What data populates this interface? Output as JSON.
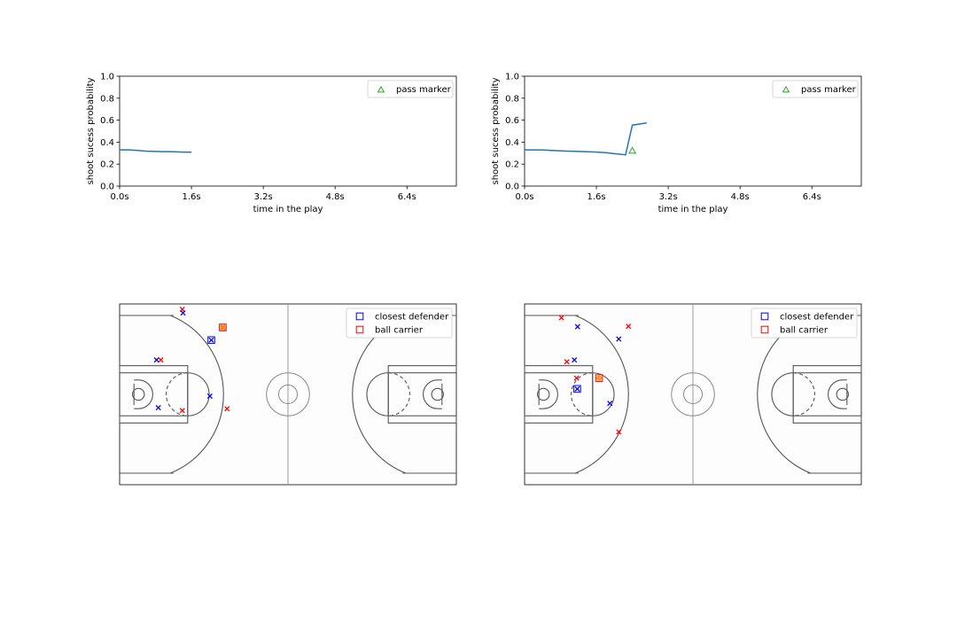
{
  "chart_data": [
    {
      "type": "line",
      "panel": "top-left",
      "ylabel": "shoot sucess probability",
      "xlabel": "time in the play",
      "xlim": [
        0,
        7.5
      ],
      "ylim": [
        0,
        1.0
      ],
      "yticks": [
        "0.0",
        "0.2",
        "0.4",
        "0.6",
        "0.8",
        "1.0"
      ],
      "xticks": [
        "0.0s",
        "1.6s",
        "3.2s",
        "4.8s",
        "6.4s"
      ],
      "xtick_values": [
        0,
        1.6,
        3.2,
        4.8,
        6.4
      ],
      "grid": false,
      "legend": {
        "position": "top-right",
        "entries": [
          "pass marker"
        ]
      },
      "series": [
        {
          "name": "",
          "color": "#1f77b4",
          "x": [
            0,
            0.2,
            0.4,
            0.6,
            0.8,
            1.0,
            1.2,
            1.4,
            1.6
          ],
          "y": [
            0.33,
            0.33,
            0.325,
            0.318,
            0.315,
            0.314,
            0.312,
            0.31,
            0.308
          ]
        }
      ],
      "pass_markers": []
    },
    {
      "type": "line",
      "panel": "top-right",
      "ylabel": "shoot sucess probability",
      "xlabel": "time in the play",
      "xlim": [
        0,
        7.5
      ],
      "ylim": [
        0,
        1.0
      ],
      "yticks": [
        "0.0",
        "0.2",
        "0.4",
        "0.6",
        "0.8",
        "1.0"
      ],
      "xticks": [
        "0.0s",
        "1.6s",
        "3.2s",
        "4.8s",
        "6.4s"
      ],
      "xtick_values": [
        0,
        1.6,
        3.2,
        4.8,
        6.4
      ],
      "grid": false,
      "legend": {
        "position": "top-right",
        "entries": [
          "pass marker"
        ]
      },
      "series": [
        {
          "name": "",
          "color": "#1f77b4",
          "x": [
            0,
            0.4,
            0.8,
            1.2,
            1.6,
            1.8,
            2.0,
            2.25,
            2.4,
            2.72
          ],
          "y": [
            0.33,
            0.328,
            0.32,
            0.315,
            0.31,
            0.305,
            0.295,
            0.285,
            0.555,
            0.575
          ]
        }
      ],
      "pass_markers": [
        {
          "x": 2.4,
          "y": 0.32,
          "color": "#2ca02c"
        }
      ]
    },
    {
      "type": "scatter",
      "panel": "bottom-left",
      "legend": {
        "position": "top-right",
        "entries": [
          "closest defender",
          "ball carrier"
        ]
      },
      "court": {
        "length": 94,
        "width": 50
      },
      "offense": [
        {
          "x": 17.5,
          "y": 48.5
        },
        {
          "x": 28.8,
          "y": 43.5
        },
        {
          "x": 11.5,
          "y": 34.5
        },
        {
          "x": 17.5,
          "y": 20.5
        },
        {
          "x": 30.0,
          "y": 21.0
        }
      ],
      "defense": [
        {
          "x": 17.7,
          "y": 47.5
        },
        {
          "x": 25.6,
          "y": 40.0
        },
        {
          "x": 10.3,
          "y": 34.5
        },
        {
          "x": 10.8,
          "y": 21.3
        },
        {
          "x": 25.2,
          "y": 24.5
        }
      ],
      "closest_defender": {
        "x": 25.6,
        "y": 40.0
      },
      "ball_carrier": {
        "x": 28.8,
        "y": 43.5
      }
    },
    {
      "type": "scatter",
      "panel": "bottom-right",
      "legend": {
        "position": "top-right",
        "entries": [
          "closest defender",
          "ball carrier"
        ]
      },
      "court": {
        "length": 94,
        "width": 50
      },
      "offense": [
        {
          "x": 10.3,
          "y": 46.2
        },
        {
          "x": 29.0,
          "y": 43.8
        },
        {
          "x": 11.8,
          "y": 34.0
        },
        {
          "x": 14.5,
          "y": 29.5
        },
        {
          "x": 26.3,
          "y": 14.6
        }
      ],
      "defense": [
        {
          "x": 14.8,
          "y": 43.7
        },
        {
          "x": 26.3,
          "y": 40.3
        },
        {
          "x": 13.9,
          "y": 34.5
        },
        {
          "x": 14.7,
          "y": 26.5
        },
        {
          "x": 23.8,
          "y": 22.5
        }
      ],
      "closest_defender": {
        "x": 14.7,
        "y": 26.5
      },
      "ball_carrier": {
        "x": 20.8,
        "y": 29.5
      }
    }
  ]
}
